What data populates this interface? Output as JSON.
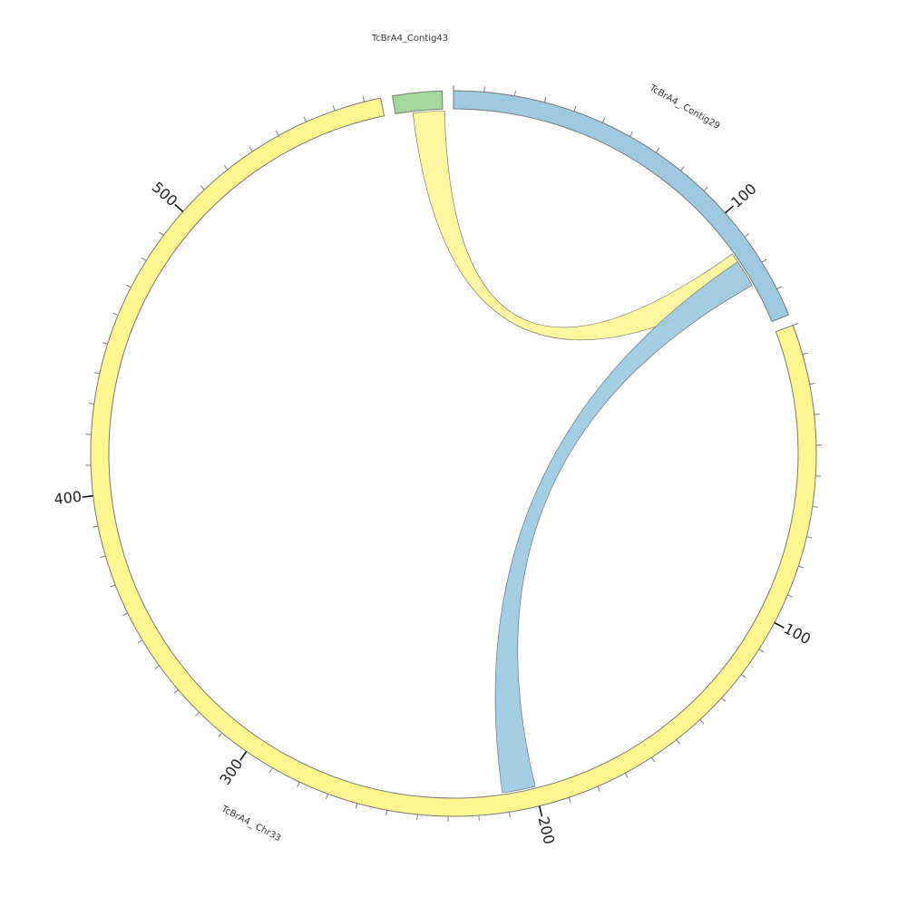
{
  "sectors": [
    {
      "label": "TcBrA4_Contig43",
      "ticks": []
    },
    {
      "label": "TcBrA4_ Contig29",
      "ticks": [
        "100"
      ]
    },
    {
      "label": "TcBrA4_ Chr33",
      "ticks": [
        "100",
        "200",
        "300",
        "400",
        "500"
      ]
    }
  ]
}
